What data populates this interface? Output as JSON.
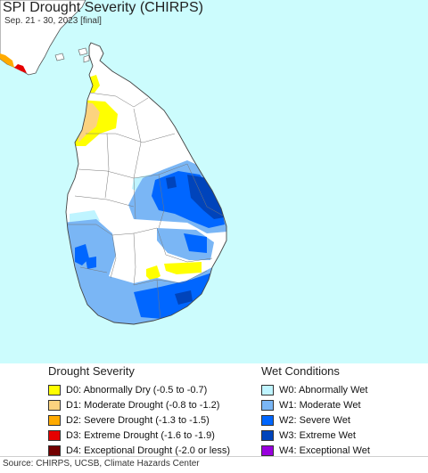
{
  "title": "SPI Drought Severity (CHIRPS)",
  "subtitle": "Sep. 21 - 30, 2023 [final]",
  "colors": {
    "ocean": "#ccfcfd",
    "land": "#ffffff",
    "mainland": "#ffffff",
    "border": "#555555",
    "d0": "#ffff00",
    "d1": "#fcd37f",
    "d2": "#ffaa00",
    "d3": "#e60000",
    "d4": "#730000",
    "w0": "#bff4ff",
    "w1": "#7ab6f5",
    "w2": "#0066ff",
    "w3": "#0044bb",
    "w4": "#9900dd"
  },
  "legend": {
    "drought": {
      "heading": "Drought Severity",
      "items": [
        {
          "label": "D0: Abnormally Dry (-0.5 to -0.7)",
          "color": "#ffff00"
        },
        {
          "label": "D1: Moderate Drought (-0.8 to -1.2)",
          "color": "#fcd37f"
        },
        {
          "label": "D2: Severe Drought (-1.3 to -1.5)",
          "color": "#ffaa00"
        },
        {
          "label": "D3: Extreme Drought (-1.6 to -1.9)",
          "color": "#e60000"
        },
        {
          "label": "D4: Exceptional Drought (-2.0 or less)",
          "color": "#730000"
        }
      ]
    },
    "wet": {
      "heading": "Wet Conditions",
      "items": [
        {
          "label": "W0: Abnormally Wet",
          "color": "#bff4ff"
        },
        {
          "label": "W1: Moderate Wet",
          "color": "#7ab6f5"
        },
        {
          "label": "W2: Severe Wet",
          "color": "#0066ff"
        },
        {
          "label": "W3: Extreme Wet",
          "color": "#0044bb"
        },
        {
          "label": "W4: Exceptional Wet",
          "color": "#9900dd"
        }
      ]
    }
  },
  "source": "Source: CHIRPS, UCSB, Climate Hazards Center"
}
